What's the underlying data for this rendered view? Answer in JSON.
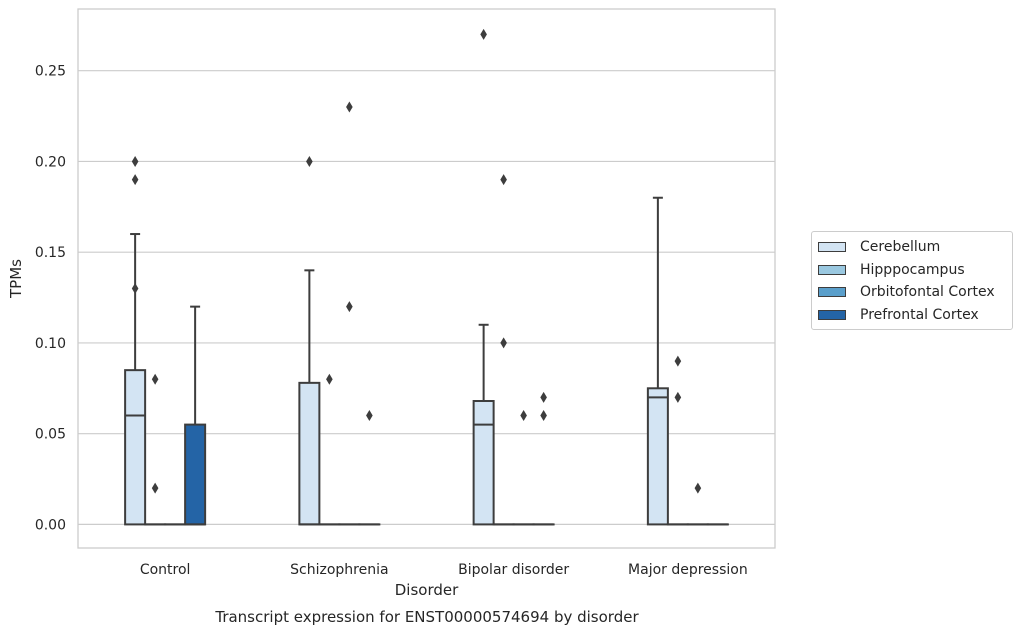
{
  "chart_data": {
    "type": "box",
    "title": "",
    "caption": "Transcript expression for ENST00000574694 by disorder",
    "xlabel": "Disorder",
    "ylabel": "TPMs",
    "ylim": [
      -0.013,
      0.284
    ],
    "yticks": [
      "0.00",
      "0.05",
      "0.10",
      "0.15",
      "0.20",
      "0.25"
    ],
    "grid": "horizontal",
    "legend_position": "outside-right",
    "categories": [
      "Control",
      "Schizophrenia",
      "Bipolar disorder",
      "Major depression"
    ],
    "series": [
      {
        "name": "Cerebellum",
        "color": "#d3e4f3",
        "boxes": [
          {
            "category": "Control",
            "whislo": 0.0,
            "q1": 0.0,
            "med": 0.06,
            "q3": 0.085,
            "whishi": 0.16,
            "fliers": [
              0.13,
              0.19,
              0.2
            ]
          },
          {
            "category": "Schizophrenia",
            "whislo": 0.0,
            "q1": 0.0,
            "med": 0.0,
            "q3": 0.078,
            "whishi": 0.14,
            "fliers": [
              0.2
            ]
          },
          {
            "category": "Bipolar disorder",
            "whislo": 0.0,
            "q1": 0.0,
            "med": 0.055,
            "q3": 0.068,
            "whishi": 0.11,
            "fliers": [
              0.27
            ]
          },
          {
            "category": "Major depression",
            "whislo": 0.0,
            "q1": 0.0,
            "med": 0.07,
            "q3": 0.075,
            "whishi": 0.18,
            "fliers": []
          }
        ]
      },
      {
        "name": "Hipppocampus",
        "color": "#9ac8e0",
        "boxes": [
          {
            "category": "Control",
            "whislo": 0.0,
            "q1": 0.0,
            "med": 0.0,
            "q3": 0.0,
            "whishi": 0.0,
            "fliers": [
              0.02,
              0.08
            ]
          },
          {
            "category": "Schizophrenia",
            "whislo": 0.0,
            "q1": 0.0,
            "med": 0.0,
            "q3": 0.0,
            "whishi": 0.0,
            "fliers": [
              0.08
            ]
          },
          {
            "category": "Bipolar disorder",
            "whislo": 0.0,
            "q1": 0.0,
            "med": 0.0,
            "q3": 0.0,
            "whishi": 0.0,
            "fliers": [
              0.1,
              0.19
            ]
          },
          {
            "category": "Major depression",
            "whislo": 0.0,
            "q1": 0.0,
            "med": 0.0,
            "q3": 0.0,
            "whishi": 0.0,
            "fliers": [
              0.07,
              0.09
            ]
          }
        ]
      },
      {
        "name": "Orbitofontal Cortex",
        "color": "#5a9fcb",
        "boxes": [
          {
            "category": "Control",
            "whislo": 0.0,
            "q1": 0.0,
            "med": 0.0,
            "q3": 0.0,
            "whishi": 0.0,
            "fliers": []
          },
          {
            "category": "Schizophrenia",
            "whislo": 0.0,
            "q1": 0.0,
            "med": 0.0,
            "q3": 0.0,
            "whishi": 0.0,
            "fliers": [
              0.12,
              0.23
            ]
          },
          {
            "category": "Bipolar disorder",
            "whislo": 0.0,
            "q1": 0.0,
            "med": 0.0,
            "q3": 0.0,
            "whishi": 0.0,
            "fliers": [
              0.06
            ]
          },
          {
            "category": "Major depression",
            "whislo": 0.0,
            "q1": 0.0,
            "med": 0.0,
            "q3": 0.0,
            "whishi": 0.0,
            "fliers": [
              0.02
            ]
          }
        ]
      },
      {
        "name": "Prefrontal Cortex",
        "color": "#2464a6",
        "boxes": [
          {
            "category": "Control",
            "whislo": 0.0,
            "q1": 0.0,
            "med": 0.0,
            "q3": 0.055,
            "whishi": 0.12,
            "fliers": []
          },
          {
            "category": "Schizophrenia",
            "whislo": 0.0,
            "q1": 0.0,
            "med": 0.0,
            "q3": 0.0,
            "whishi": 0.0,
            "fliers": [
              0.06
            ]
          },
          {
            "category": "Bipolar disorder",
            "whislo": 0.0,
            "q1": 0.0,
            "med": 0.0,
            "q3": 0.0,
            "whishi": 0.0,
            "fliers": [
              0.06,
              0.07
            ]
          },
          {
            "category": "Major depression",
            "whislo": 0.0,
            "q1": 0.0,
            "med": 0.0,
            "q3": 0.0,
            "whishi": 0.0,
            "fliers": []
          }
        ]
      }
    ]
  }
}
